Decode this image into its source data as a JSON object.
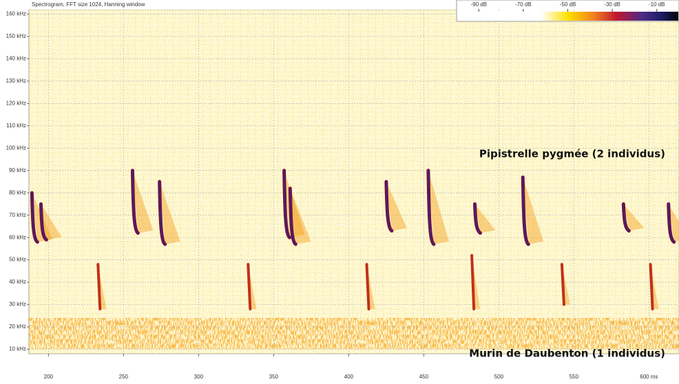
{
  "chart_data": {
    "type": "spectrogram",
    "title": "Spectrogram, FFT size 1024, Hanning window",
    "xlim": [
      187,
      620
    ],
    "xticks": [
      200,
      250,
      300,
      350,
      400,
      450,
      500,
      550,
      {
        "value": 600,
        "label": "600 ms"
      }
    ],
    "ylim": [
      8,
      162
    ],
    "yticks": [
      {
        "value": 10,
        "label": "10 kHz"
      },
      {
        "value": 20,
        "label": "20 kHz"
      },
      {
        "value": 30,
        "label": "30 kHz"
      },
      {
        "value": 40,
        "label": "40 kHz"
      },
      {
        "value": 50,
        "label": "50 kHz"
      },
      {
        "value": 60,
        "label": "60 kHz"
      },
      {
        "value": 70,
        "label": "70 kHz"
      },
      {
        "value": 80,
        "label": "80 kHz"
      },
      {
        "value": 90,
        "label": "90 kHz"
      },
      {
        "value": 100,
        "label": "100 kHz"
      },
      {
        "value": 110,
        "label": "110 kHz"
      },
      {
        "value": 120,
        "label": "120 kHz"
      },
      {
        "value": 130,
        "label": "130 kHz"
      },
      {
        "value": 140,
        "label": "140 kHz"
      },
      {
        "value": 150,
        "label": "150 kHz"
      },
      {
        "value": 160,
        "label": "160 kHz"
      }
    ],
    "grid": true,
    "colorbar": {
      "clim": [
        -100,
        0
      ],
      "ticks": [
        {
          "value": -90,
          "label": "-90 dB"
        },
        {
          "value": -70,
          "label": "-70 dB"
        },
        {
          "value": -50,
          "label": "-50 dB"
        },
        {
          "value": -30,
          "label": "-30 dB"
        },
        {
          "value": -10,
          "label": "-10 dB"
        }
      ]
    },
    "series": [
      {
        "name": "Pipistrelle pygmée (2 individus)",
        "color": "#7a1040",
        "x": [
          189,
          195,
          256,
          274,
          357,
          361,
          425,
          453,
          484,
          516,
          583,
          613
        ],
        "values": [
          80,
          75,
          90,
          85,
          90,
          82,
          85,
          90,
          75,
          87,
          75,
          75
        ],
        "values_low": [
          58,
          59,
          62,
          57,
          60,
          57,
          63,
          57,
          62,
          57,
          63,
          58
        ]
      },
      {
        "name": "Murin de Daubenton (1 individus)",
        "color": "#c0301a",
        "x": [
          233,
          333,
          412,
          482,
          542,
          601
        ],
        "values": [
          48,
          48,
          48,
          52,
          48,
          48
        ],
        "values_low": [
          28,
          28,
          28,
          28,
          30,
          28
        ]
      }
    ]
  }
}
